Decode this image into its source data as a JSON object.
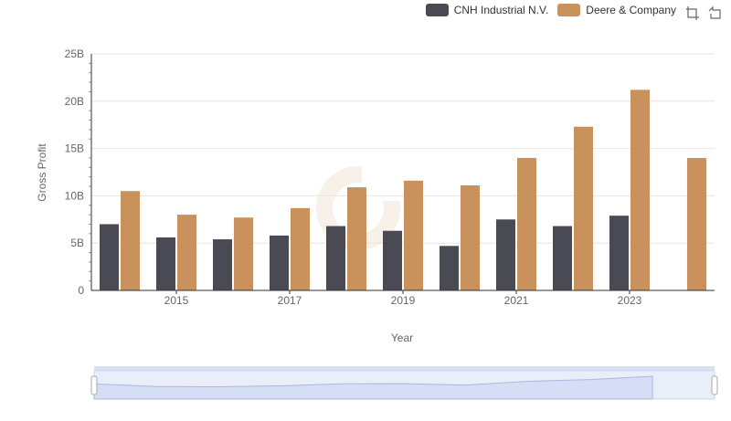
{
  "legend": {
    "items": [
      {
        "name": "CNH Industrial N.V.",
        "color": "#4a4a55"
      },
      {
        "name": "Deere & Company",
        "color": "#c9915c"
      }
    ]
  },
  "toolbox": {
    "icons": [
      "zoom-icon",
      "restore-icon"
    ]
  },
  "chart_data": {
    "type": "bar",
    "x": [
      2014,
      2015,
      2016,
      2017,
      2018,
      2019,
      2020,
      2021,
      2022,
      2023,
      2024
    ],
    "x_tick_labels": [
      "2015",
      "2017",
      "2019",
      "2021",
      "2023"
    ],
    "series": [
      {
        "name": "CNH Industrial N.V.",
        "color": "#4a4a55",
        "values": [
          7.0,
          5.6,
          5.4,
          5.8,
          6.8,
          6.3,
          4.7,
          7.5,
          6.8,
          7.9,
          null
        ]
      },
      {
        "name": "Deere & Company",
        "color": "#c9915c",
        "values": [
          10.5,
          8.0,
          7.7,
          8.7,
          10.9,
          11.6,
          11.1,
          14.0,
          17.3,
          21.2,
          14.0
        ]
      }
    ],
    "xlabel": "Year",
    "ylabel": "Gross Profit",
    "ylim": [
      0,
      25
    ],
    "y_ticks": [
      0,
      5,
      10,
      15,
      20,
      25
    ],
    "y_tick_labels": [
      "0",
      "5B",
      "10B",
      "15B",
      "20B",
      "25B"
    ],
    "unit": "B",
    "grid": true,
    "legend_position": "top-right",
    "data_zoom": true
  }
}
